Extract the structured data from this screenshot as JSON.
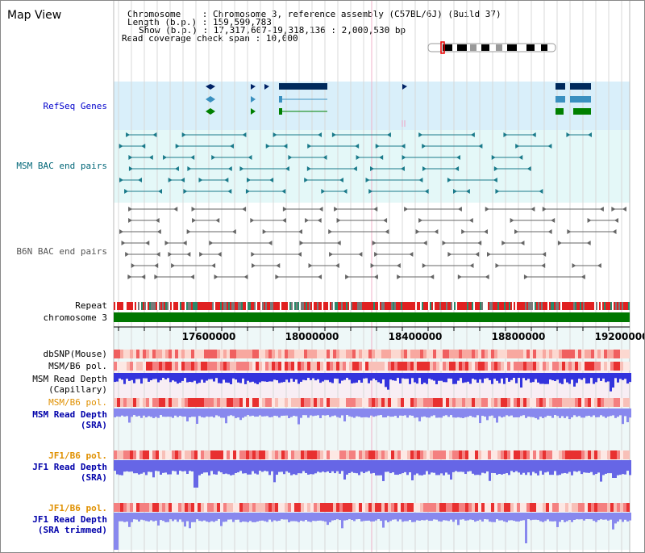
{
  "header": {
    "title": "Map View",
    "chromosome_key": "Chromosome",
    "chromosome_value": "Chromosome 3, reference assembly (C57BL/6J) (Build 37)",
    "length_key": "Length (b.p.)",
    "length_value": "159,599,783",
    "show_key": "Show (b.p.)",
    "show_value": "17,317,607-19,318,136 : 2,000,530 bp",
    "coverage_key": "Read coverage check span",
    "coverage_value": "10,000"
  },
  "colors": {
    "refseq_bg": "#d9effa",
    "msm_bac_bg": "#e4f8f8",
    "track_bg": "#eef8f8",
    "depth_pink_bg": "#f8eef4",
    "grid": "#c8c8c8",
    "refseq_label": "#0000cc",
    "msm_bac_label": "#006677",
    "b6n_bac_label": "#555555",
    "pol_orange": "#e09000",
    "depth_blue": "#0000aa",
    "repeat_red": "#e02020",
    "chromosome_green": "#007700"
  },
  "tracks": {
    "refseq_genes": "RefSeq Genes",
    "msm_bac": "MSM BAC end pairs",
    "b6n_bac": "B6N BAC end pairs",
    "repeat": "Repeat",
    "chromosome": "chromosome 3",
    "dbsnp": "dbSNP(Mouse)",
    "msm_b6_pol_1": "MSM/B6 pol.",
    "msm_depth_cap_1": "MSM Read Depth",
    "msm_depth_cap_2": "(Capillary)",
    "msm_b6_pol_2": "MSM/B6 pol.",
    "msm_depth_sra_1": "MSM Read Depth",
    "msm_depth_sra_2": "(SRA)",
    "jf1_b6_pol_1": "JF1/B6 pol.",
    "jf1_depth_sra_1": "JF1 Read Depth",
    "jf1_depth_sra_2": "(SRA)",
    "jf1_b6_pol_2": "JF1/B6 pol.",
    "jf1_depth_trim_1": "JF1 Read Depth",
    "jf1_depth_trim_2": "(SRA trimmed)"
  },
  "axis": {
    "ticks": [
      "17600000",
      "18000000",
      "18400000",
      "18800000",
      "19200000"
    ]
  }
}
